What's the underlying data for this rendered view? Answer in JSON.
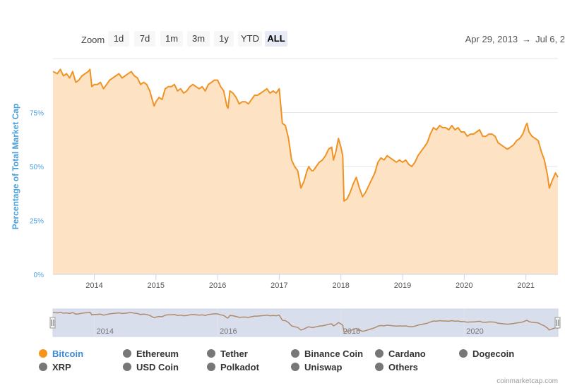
{
  "zoom": {
    "label": "Zoom",
    "buttons": [
      "1d",
      "7d",
      "1m",
      "3m",
      "1y",
      "YTD",
      "ALL"
    ],
    "active": "ALL"
  },
  "range": {
    "from": "Apr 29, 2013",
    "arrow": "→",
    "to": "Jul 6, 2"
  },
  "credit": "coinmarketcap.com",
  "legend": {
    "row1": [
      "Bitcoin",
      "Ethereum",
      "Tether",
      "Binance Coin",
      "Cardano",
      "Dogecoin"
    ],
    "row2": [
      "XRP",
      "USD Coin",
      "Polkadot",
      "Uniswap",
      "Others"
    ],
    "active": "Bitcoin"
  },
  "colors": {
    "bitcoin": "#f7931a",
    "fill": "#fde3c4",
    "line": "#ef9326",
    "axis_label": "#4aa0dc",
    "navigator_mask": "#ccd3e6"
  },
  "chart_data": {
    "type": "area",
    "title": "",
    "ylabel": "Percentage of Total Market Cap",
    "yticks": [
      "0%",
      "25%",
      "50%",
      "75%"
    ],
    "ylim": [
      0,
      100
    ],
    "xlim": [
      2013.33,
      2021.52
    ],
    "xticks": [
      "2014",
      "2015",
      "2016",
      "2017",
      "2018",
      "2019",
      "2020",
      "2021"
    ],
    "navigator_ticks": [
      "2014",
      "2016",
      "2018",
      "2020"
    ],
    "grid": true,
    "series": [
      {
        "name": "Bitcoin",
        "x": [
          2013.33,
          2013.4,
          2013.45,
          2013.5,
          2013.55,
          2013.6,
          2013.65,
          2013.7,
          2013.75,
          2013.8,
          2013.85,
          2013.9,
          2013.93,
          2013.96,
          2014.0,
          2014.05,
          2014.1,
          2014.15,
          2014.2,
          2014.25,
          2014.3,
          2014.35,
          2014.4,
          2014.45,
          2014.5,
          2014.55,
          2014.6,
          2014.65,
          2014.7,
          2014.75,
          2014.8,
          2014.85,
          2014.9,
          2014.95,
          2014.97,
          2015.0,
          2015.05,
          2015.1,
          2015.15,
          2015.2,
          2015.25,
          2015.3,
          2015.35,
          2015.4,
          2015.45,
          2015.5,
          2015.55,
          2015.6,
          2015.65,
          2015.7,
          2015.75,
          2015.8,
          2015.85,
          2015.9,
          2015.95,
          2016.0,
          2016.05,
          2016.1,
          2016.15,
          2016.17,
          2016.2,
          2016.25,
          2016.3,
          2016.35,
          2016.4,
          2016.45,
          2016.5,
          2016.55,
          2016.6,
          2016.65,
          2016.7,
          2016.75,
          2016.8,
          2016.85,
          2016.9,
          2016.95,
          2017.0,
          2017.05,
          2017.1,
          2017.15,
          2017.2,
          2017.25,
          2017.3,
          2017.35,
          2017.4,
          2017.45,
          2017.48,
          2017.5,
          2017.53,
          2017.55,
          2017.6,
          2017.65,
          2017.7,
          2017.75,
          2017.8,
          2017.85,
          2017.88,
          2017.92,
          2017.96,
          2018.0,
          2018.03,
          2018.05,
          2018.1,
          2018.15,
          2018.2,
          2018.25,
          2018.3,
          2018.35,
          2018.4,
          2018.45,
          2018.5,
          2018.55,
          2018.6,
          2018.65,
          2018.7,
          2018.75,
          2018.8,
          2018.85,
          2018.9,
          2018.95,
          2019.0,
          2019.05,
          2019.1,
          2019.15,
          2019.2,
          2019.25,
          2019.3,
          2019.35,
          2019.4,
          2019.45,
          2019.5,
          2019.55,
          2019.6,
          2019.65,
          2019.7,
          2019.75,
          2019.8,
          2019.85,
          2019.9,
          2019.95,
          2020.0,
          2020.05,
          2020.1,
          2020.15,
          2020.2,
          2020.25,
          2020.3,
          2020.35,
          2020.4,
          2020.45,
          2020.5,
          2020.55,
          2020.6,
          2020.65,
          2020.7,
          2020.75,
          2020.8,
          2020.85,
          2020.9,
          2020.95,
          2021.0,
          2021.02,
          2021.05,
          2021.1,
          2021.15,
          2021.2,
          2021.25,
          2021.3,
          2021.35,
          2021.38,
          2021.42,
          2021.45,
          2021.48,
          2021.52
        ],
        "y": [
          94,
          93,
          95,
          92,
          93,
          91,
          94,
          89,
          90,
          92,
          93,
          94,
          95,
          87,
          88,
          88,
          89,
          86,
          88,
          90,
          91,
          92,
          93,
          91,
          92,
          93,
          94,
          92,
          91,
          88,
          89,
          88,
          85,
          80,
          78,
          80,
          82,
          81,
          86,
          87,
          87,
          88,
          85,
          86,
          84,
          85,
          87,
          88,
          87,
          86,
          87,
          85,
          88,
          89,
          90,
          90,
          87,
          85,
          78,
          77,
          85,
          84,
          82,
          79,
          80,
          80,
          79,
          81,
          83,
          83,
          84,
          85,
          86,
          84,
          85,
          84,
          86,
          70,
          69,
          63,
          53,
          50,
          48,
          40,
          43,
          48,
          50,
          49,
          48,
          48,
          50,
          52,
          53,
          55,
          58,
          59,
          53,
          57,
          63,
          59,
          55,
          34,
          35,
          38,
          42,
          45,
          40,
          36,
          38,
          41,
          44,
          47,
          52,
          54,
          53,
          55,
          54,
          53,
          52,
          53,
          52,
          53,
          51,
          50,
          52,
          55,
          57,
          59,
          61,
          65,
          68,
          67,
          69,
          68,
          68,
          67,
          69,
          67,
          68,
          66,
          66,
          64,
          65,
          65,
          66,
          67,
          64,
          64,
          65,
          65,
          64,
          61,
          60,
          59,
          58,
          59,
          60,
          62,
          63,
          65,
          69,
          70,
          66,
          64,
          63,
          62,
          57,
          53,
          46,
          40,
          43,
          45,
          47,
          45
        ]
      }
    ]
  }
}
